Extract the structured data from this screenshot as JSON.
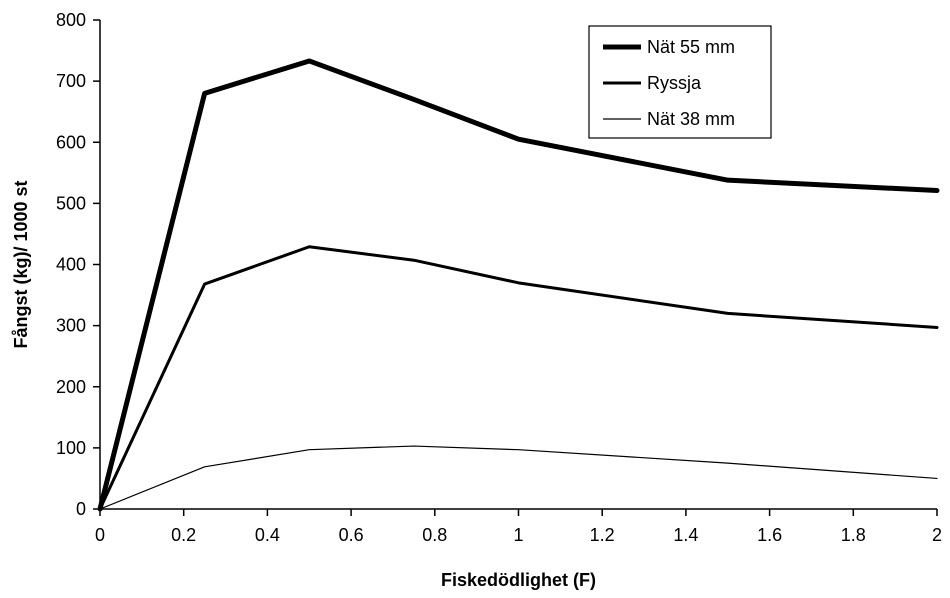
{
  "chart_data": {
    "type": "line",
    "title": "",
    "xlabel": "Fiskedödlighet (F)",
    "ylabel": "Fångst (kg)/ 1000 st",
    "xlim": [
      0,
      2
    ],
    "ylim": [
      0,
      800
    ],
    "xticks": [
      0,
      0.2,
      0.4,
      0.6,
      0.8,
      1,
      1.2,
      1.4,
      1.6,
      1.8,
      2
    ],
    "xtick_labels": [
      "0",
      "0.2",
      "0.4",
      "0.6",
      "0.8",
      "1",
      "1.2",
      "1.4",
      "1.6",
      "1.8",
      "2"
    ],
    "yticks": [
      0,
      100,
      200,
      300,
      400,
      500,
      600,
      700,
      800
    ],
    "ytick_labels": [
      "0",
      "100",
      "200",
      "300",
      "400",
      "500",
      "600",
      "700",
      "800"
    ],
    "grid": false,
    "legend_position": "top-right",
    "x": [
      0,
      0.25,
      0.5,
      0.75,
      1,
      1.5,
      2
    ],
    "series": [
      {
        "name": "Nät 55 mm",
        "values": [
          0,
          680,
          733,
          670,
          605,
          538,
          521
        ],
        "color": "#000000",
        "line_weight": "thick"
      },
      {
        "name": "Ryssja",
        "values": [
          0,
          368,
          429,
          407,
          370,
          320,
          297
        ],
        "color": "#000000",
        "line_weight": "medium"
      },
      {
        "name": "Nät 38 mm",
        "values": [
          0,
          69,
          97,
          103,
          97,
          75,
          50
        ],
        "color": "#000000",
        "line_weight": "thin"
      }
    ]
  }
}
